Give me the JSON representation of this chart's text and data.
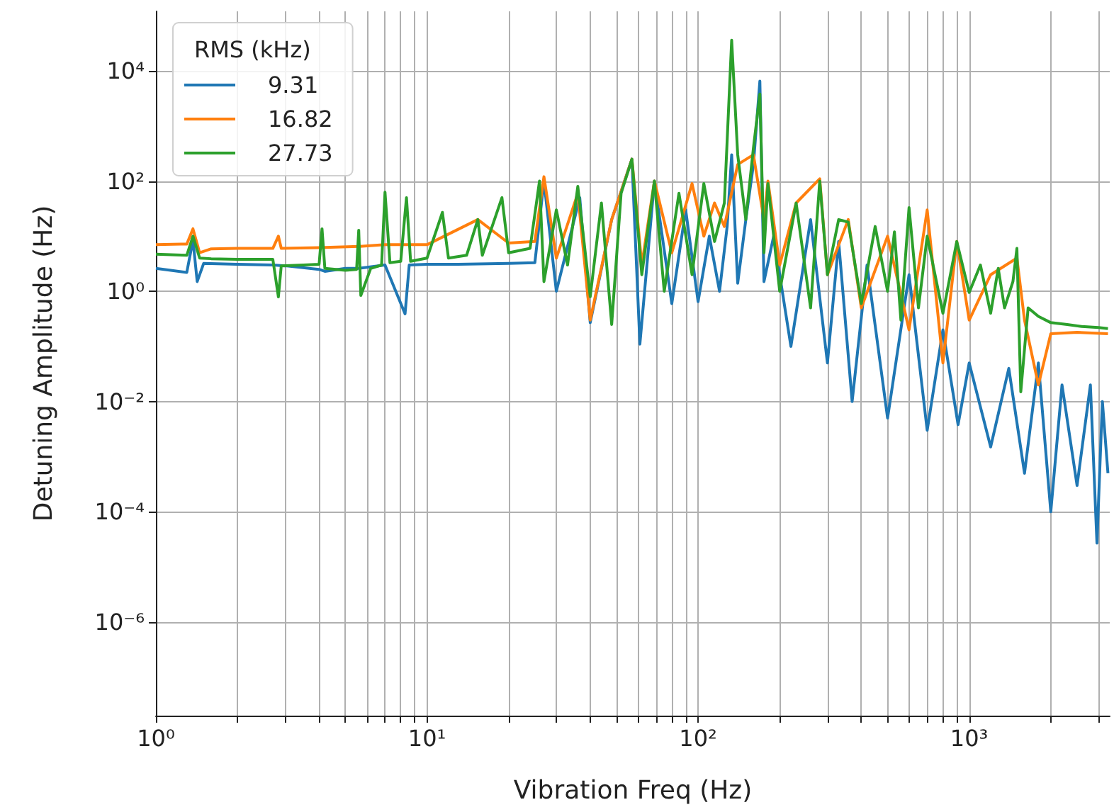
{
  "chart_data": {
    "type": "line",
    "xlabel": "Vibration Freq (Hz)",
    "ylabel": "Detuning Amplitude (Hz)",
    "legend_title": "RMS (kHz)",
    "legend": "top left",
    "grid": true,
    "log": "xy",
    "xlim": [
      1,
      3300
    ],
    "ylim": [
      2e-08,
      120000
    ],
    "xticks": [
      {
        "value": 1,
        "label": "10⁰"
      },
      {
        "value": 2,
        "label": null
      },
      {
        "value": 3,
        "label": null
      },
      {
        "value": 4,
        "label": null
      },
      {
        "value": 5,
        "label": null
      },
      {
        "value": 6,
        "label": null
      },
      {
        "value": 7,
        "label": null
      },
      {
        "value": 8,
        "label": null
      },
      {
        "value": 9,
        "label": null
      },
      {
        "value": 10,
        "label": "10¹"
      },
      {
        "value": 20,
        "label": null
      },
      {
        "value": 30,
        "label": null
      },
      {
        "value": 40,
        "label": null
      },
      {
        "value": 50,
        "label": null
      },
      {
        "value": 60,
        "label": null
      },
      {
        "value": 70,
        "label": null
      },
      {
        "value": 80,
        "label": null
      },
      {
        "value": 90,
        "label": null
      },
      {
        "value": 100,
        "label": "10²"
      },
      {
        "value": 200,
        "label": null
      },
      {
        "value": 300,
        "label": null
      },
      {
        "value": 400,
        "label": null
      },
      {
        "value": 500,
        "label": null
      },
      {
        "value": 600,
        "label": null
      },
      {
        "value": 700,
        "label": null
      },
      {
        "value": 800,
        "label": null
      },
      {
        "value": 900,
        "label": null
      },
      {
        "value": 1000,
        "label": "10³"
      },
      {
        "value": 2000,
        "label": null
      },
      {
        "value": 3000,
        "label": null
      }
    ],
    "yticks": [
      {
        "value": 1e-06,
        "label": "10⁻⁶"
      },
      {
        "value": 0.0001,
        "label": "10⁻⁴"
      },
      {
        "value": 0.01,
        "label": "10⁻²"
      },
      {
        "value": 1,
        "label": "10⁰"
      },
      {
        "value": 100,
        "label": "10²"
      },
      {
        "value": 10000,
        "label": "10⁴"
      }
    ],
    "series": [
      {
        "name": "9.31",
        "color": "#1f77b4",
        "x": [
          1,
          1.3,
          1.37,
          1.42,
          1.5,
          2,
          2.7,
          3,
          4,
          4.2,
          5,
          5.6,
          7,
          8.3,
          8.6,
          10,
          13,
          20,
          25,
          27,
          30,
          36.6,
          40,
          48,
          57,
          61,
          69,
          80,
          90,
          100,
          110,
          120,
          128,
          133,
          140,
          150,
          160,
          169,
          175,
          190,
          220,
          260,
          300,
          330,
          370,
          420,
          500,
          600,
          700,
          800,
          910,
          1000,
          1200,
          1400,
          1600,
          1800,
          2000,
          2200,
          2500,
          2800,
          2960,
          3100,
          3250
        ],
        "values": [
          2.6,
          2.2,
          8.5,
          1.5,
          3.2,
          3.1,
          3,
          2.9,
          2.5,
          2.3,
          2.6,
          2.6,
          3,
          0.39,
          3,
          3.1,
          3.1,
          3.2,
          3.3,
          100,
          1,
          50,
          0.27,
          20,
          250,
          0.11,
          100,
          0.6,
          30,
          0.65,
          10,
          1,
          15,
          300,
          1.4,
          20,
          200,
          6500,
          1.5,
          10,
          0.1,
          20,
          0.05,
          8,
          0.01,
          3,
          0.005,
          2,
          0.003,
          0.2,
          0.0038,
          0.05,
          0.0015,
          0.04,
          0.0005,
          0.05,
          0.0001,
          0.02,
          0.0003,
          0.02,
          2.7e-05,
          0.01,
          0.0005
        ]
      },
      {
        "name": "16.82",
        "color": "#ff7f0e",
        "x": [
          1,
          1.3,
          1.37,
          1.45,
          1.6,
          2,
          2.7,
          2.83,
          2.9,
          4,
          5.6,
          7,
          8.4,
          10,
          15.4,
          20,
          25,
          27,
          30,
          36,
          40,
          48,
          57,
          62,
          69,
          80,
          95,
          105,
          115,
          125,
          140,
          160,
          175,
          181,
          200,
          230,
          281,
          300,
          358,
          400,
          500,
          600,
          700,
          800,
          900,
          1000,
          1200,
          1500,
          1600,
          1800,
          2000,
          2500,
          3250
        ],
        "values": [
          7,
          7.2,
          13.6,
          5,
          5.9,
          6,
          6,
          10,
          6,
          6.2,
          6.5,
          7,
          7,
          7,
          20,
          7.5,
          8,
          120,
          4,
          60,
          0.3,
          20,
          250,
          3,
          100,
          5,
          90,
          10,
          40,
          15,
          200,
          300,
          20,
          100,
          3,
          40,
          110,
          2,
          20,
          0.5,
          10,
          0.2,
          30,
          0.05,
          8,
          0.3,
          2,
          4,
          0.3,
          0.02,
          0.17,
          0.18,
          0.17
        ]
      },
      {
        "name": "27.73",
        "color": "#2ca02c",
        "x": [
          1,
          1.3,
          1.37,
          1.45,
          1.6,
          2,
          2.7,
          2.83,
          2.9,
          3.5,
          4.0,
          4.1,
          4.2,
          5,
          5.5,
          5.6,
          5.7,
          6.2,
          6.8,
          7.0,
          7.3,
          8.0,
          8.4,
          8.7,
          10,
          11.4,
          12,
          14,
          15.4,
          16,
          18.9,
          20,
          24,
          26,
          27,
          30,
          33,
          36,
          40,
          44,
          48,
          52,
          57,
          62,
          69,
          75,
          85,
          95,
          105,
          115,
          125,
          133,
          140,
          150,
          160,
          169,
          175,
          181,
          200,
          230,
          260,
          281,
          300,
          330,
          358,
          400,
          450,
          500,
          530,
          560,
          600,
          650,
          700,
          800,
          900,
          1000,
          1100,
          1200,
          1280,
          1350,
          1450,
          1500,
          1550,
          1650,
          1800,
          2000,
          2300,
          2600,
          3000,
          3250
        ],
        "values": [
          4.7,
          4.5,
          10,
          4,
          3.9,
          3.8,
          3.8,
          0.79,
          2.9,
          3,
          3.1,
          13.6,
          2.6,
          2.4,
          2.5,
          12.8,
          0.84,
          2.6,
          3,
          63,
          3.3,
          3.5,
          50,
          3.5,
          4,
          27,
          4,
          4.5,
          20,
          4.5,
          50,
          5,
          6,
          100,
          1.5,
          30,
          3,
          80,
          0.8,
          40,
          0.25,
          60,
          250,
          2,
          100,
          1,
          60,
          2,
          90,
          8,
          40,
          36000,
          300,
          20,
          400,
          3800,
          5,
          90,
          1,
          40,
          0.5,
          100,
          2,
          20,
          18,
          0.6,
          15,
          1,
          12,
          0.3,
          33,
          0.5,
          10,
          0.4,
          8,
          0.95,
          3,
          0.4,
          2.6,
          0.5,
          1.5,
          6,
          0.015,
          0.5,
          0.35,
          0.27,
          0.25,
          0.23,
          0.22,
          0.21
        ]
      }
    ]
  }
}
